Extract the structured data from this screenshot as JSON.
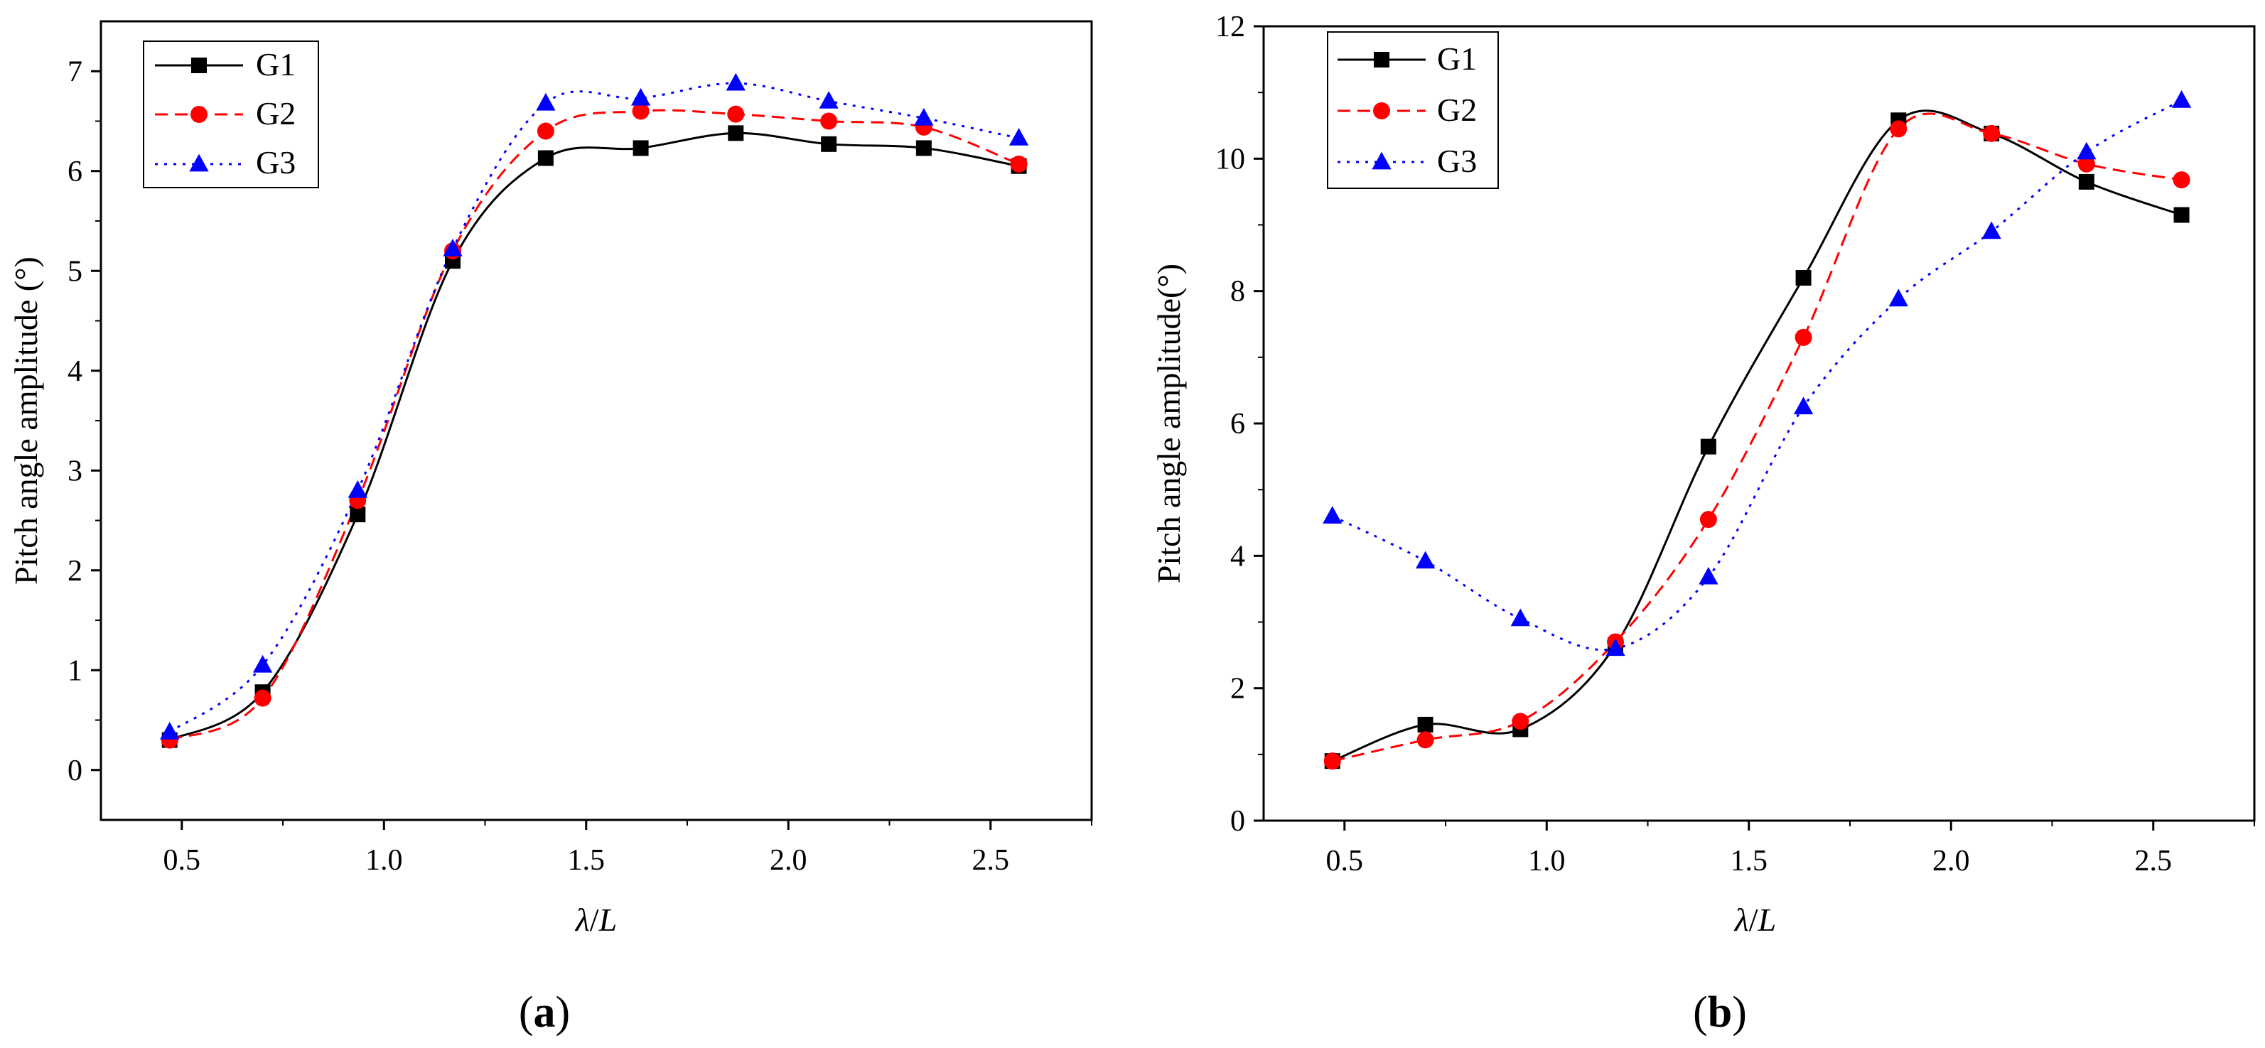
{
  "chart_data": [
    {
      "type": "line",
      "panel_label_open": "(",
      "panel_label_letter": "a",
      "panel_label_close": ")",
      "xlabel_lambda": "λ",
      "xlabel_slash": "/",
      "xlabel_L": "L",
      "ylabel": "Pitch angle amplitude (°)",
      "xlim": [
        0.3,
        2.75
      ],
      "ylim": [
        -0.5,
        7.5
      ],
      "xticks": [
        0.5,
        1.0,
        1.5,
        2.0,
        2.5
      ],
      "xtick_labels": [
        "0.5",
        "1.0",
        "1.5",
        "2.0",
        "2.5"
      ],
      "yticks": [
        0,
        1,
        2,
        3,
        4,
        5,
        6,
        7
      ],
      "ytick_labels": [
        "0",
        "1",
        "2",
        "3",
        "4",
        "5",
        "6",
        "7"
      ],
      "legend_position": "top-left",
      "x": [
        0.47,
        0.7,
        0.935,
        1.17,
        1.4,
        1.635,
        1.87,
        2.1,
        2.335,
        2.57
      ],
      "series": [
        {
          "name": "G1",
          "color": "#000000",
          "marker": "square",
          "dash": "solid",
          "values": [
            0.3,
            0.78,
            2.56,
            5.1,
            6.13,
            6.23,
            6.38,
            6.27,
            6.23,
            6.05
          ]
        },
        {
          "name": "G2",
          "color": "#ff0000",
          "marker": "circle",
          "dash": "dashed",
          "values": [
            0.3,
            0.72,
            2.7,
            5.2,
            6.4,
            6.6,
            6.57,
            6.5,
            6.44,
            6.07
          ]
        },
        {
          "name": "G3",
          "color": "#0000ff",
          "marker": "triangle",
          "dash": "dotted",
          "values": [
            0.38,
            1.05,
            2.8,
            5.22,
            6.68,
            6.73,
            6.88,
            6.7,
            6.53,
            6.33
          ]
        }
      ]
    },
    {
      "type": "line",
      "panel_label_open": "(",
      "panel_label_letter": "b",
      "panel_label_close": ")",
      "xlabel_lambda": "λ",
      "xlabel_slash": "/",
      "xlabel_L": "L",
      "ylabel": "Pitch angle amplitude(°)",
      "xlim": [
        0.3,
        2.75
      ],
      "ylim": [
        0,
        12
      ],
      "xticks": [
        0.5,
        1.0,
        1.5,
        2.0,
        2.5
      ],
      "xtick_labels": [
        "0.5",
        "1.0",
        "1.5",
        "2.0",
        "2.5"
      ],
      "yticks": [
        0,
        2,
        4,
        6,
        8,
        10,
        12
      ],
      "ytick_labels": [
        "0",
        "2",
        "4",
        "6",
        "8",
        "10",
        "12"
      ],
      "legend_position": "top-left",
      "x": [
        0.47,
        0.7,
        0.935,
        1.17,
        1.4,
        1.635,
        1.87,
        2.1,
        2.335,
        2.57
      ],
      "series": [
        {
          "name": "G1",
          "color": "#000000",
          "marker": "square",
          "dash": "solid",
          "values": [
            0.9,
            1.45,
            1.38,
            2.65,
            5.65,
            8.2,
            10.58,
            10.38,
            9.65,
            9.15
          ]
        },
        {
          "name": "G2",
          "color": "#ff0000",
          "marker": "circle",
          "dash": "dashed",
          "values": [
            0.9,
            1.22,
            1.5,
            2.7,
            4.55,
            7.3,
            10.45,
            10.38,
            9.92,
            9.68
          ]
        },
        {
          "name": "G3",
          "color": "#0000ff",
          "marker": "triangle",
          "dash": "dotted",
          "values": [
            4.6,
            3.92,
            3.05,
            2.6,
            3.68,
            6.25,
            7.88,
            8.9,
            10.1,
            10.88
          ]
        }
      ]
    }
  ]
}
